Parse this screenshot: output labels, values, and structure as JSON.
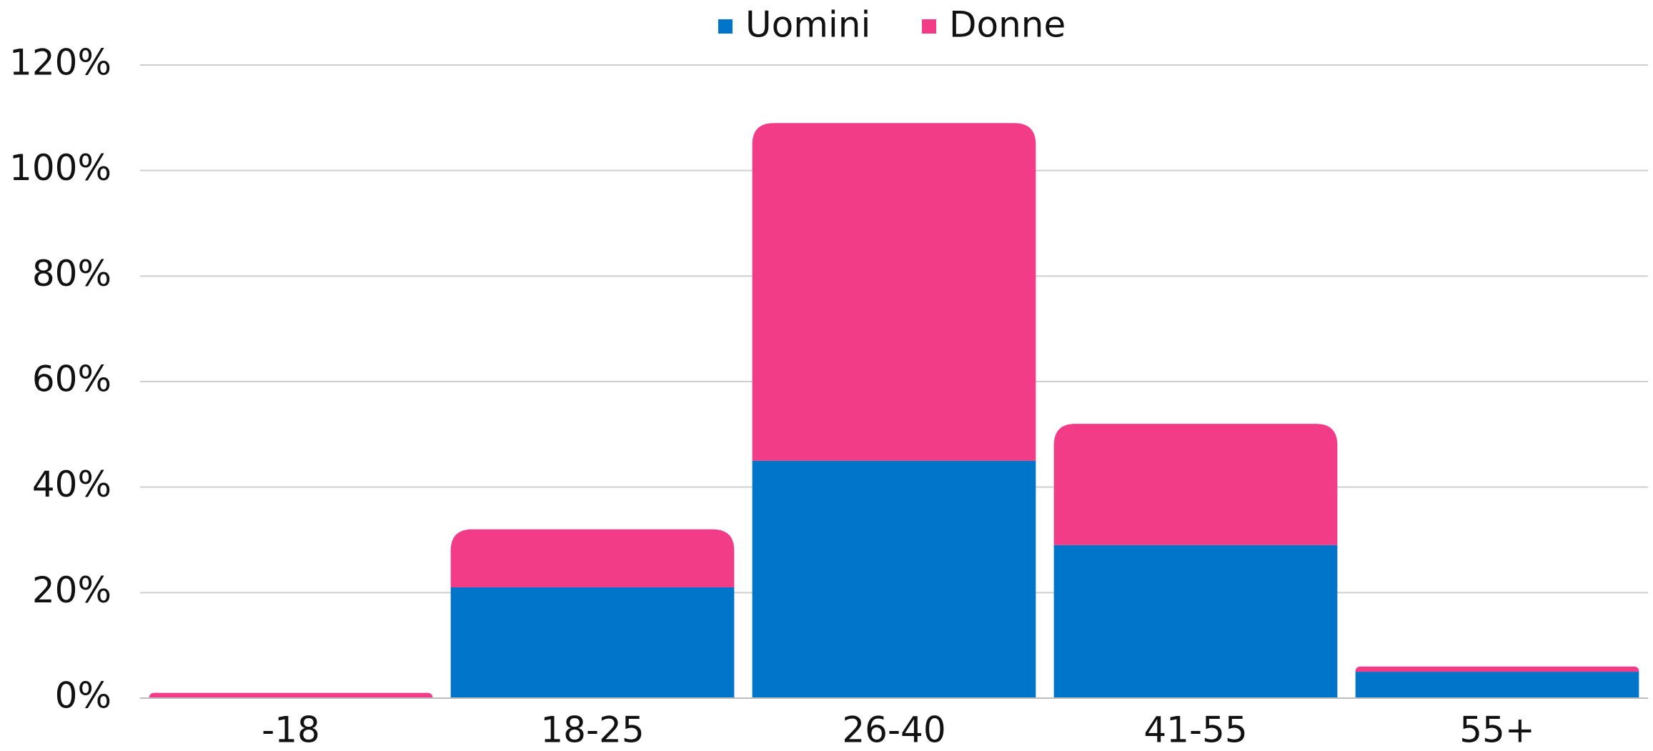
{
  "chart_data": {
    "type": "stacked_bar",
    "categories": [
      "-18",
      "18-25",
      "26-40",
      "41-55",
      "55+"
    ],
    "series": [
      {
        "name": "Uomini",
        "color": "#0075c9",
        "values": [
          0,
          21,
          45,
          29,
          5
        ]
      },
      {
        "name": "Donne",
        "color": "#f33c87",
        "values": [
          1,
          11,
          64,
          23,
          1
        ]
      }
    ],
    "ylim": [
      0,
      120
    ],
    "yticks": [
      {
        "value": 0,
        "label": "0%"
      },
      {
        "value": 20,
        "label": "20%"
      },
      {
        "value": 40,
        "label": "40%"
      },
      {
        "value": 60,
        "label": "60%"
      },
      {
        "value": 80,
        "label": "80%"
      },
      {
        "value": 100,
        "label": "100%"
      },
      {
        "value": 120,
        "label": "120%"
      }
    ],
    "grid": true,
    "legend": "top"
  }
}
